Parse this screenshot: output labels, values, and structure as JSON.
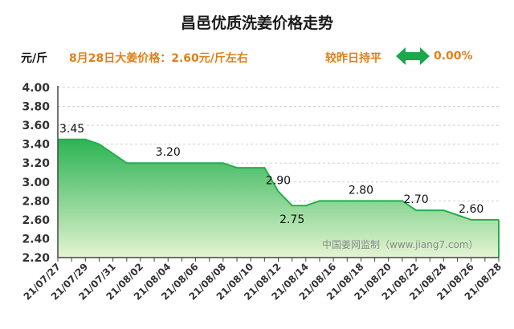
{
  "header": {
    "title": "昌邑优质洗姜价格走势",
    "unit": "元/斤",
    "price_note": "8月28日大姜价格：2.60元/斤左右",
    "compare_label": "较昨日持平",
    "compare_icon": "double-arrow-icon",
    "compare_value": "0.00%"
  },
  "colors": {
    "accent": "#e0801c",
    "line": "#22b04b",
    "fill_top": "#22b04b",
    "fill_bottom": "#e4f4d2",
    "arrow": "#1aa84a"
  },
  "watermark": "中国姜网监制（www.jiang7.com）",
  "chart_data": {
    "type": "area",
    "ylim": [
      2.2,
      4.0
    ],
    "yticks": [
      "2.20",
      "2.40",
      "2.60",
      "2.80",
      "3.00",
      "3.20",
      "3.40",
      "3.60",
      "3.80",
      "4.00"
    ],
    "xticks": [
      "21/07/27",
      "21/07/29",
      "21/07/31",
      "21/08/02",
      "21/08/04",
      "21/08/06",
      "21/08/08",
      "21/08/10",
      "21/08/12",
      "21/08/14",
      "21/08/16",
      "21/08/18",
      "21/08/20",
      "21/08/22",
      "21/08/24",
      "21/08/26",
      "21/08/28"
    ],
    "x": [
      "21/07/27",
      "21/07/28",
      "21/07/29",
      "21/07/30",
      "21/07/31",
      "21/08/01",
      "21/08/02",
      "21/08/03",
      "21/08/04",
      "21/08/05",
      "21/08/06",
      "21/08/07",
      "21/08/08",
      "21/08/09",
      "21/08/10",
      "21/08/11",
      "21/08/12",
      "21/08/13",
      "21/08/14",
      "21/08/15",
      "21/08/16",
      "21/08/17",
      "21/08/18",
      "21/08/19",
      "21/08/20",
      "21/08/21",
      "21/08/22",
      "21/08/23",
      "21/08/24",
      "21/08/25",
      "21/08/26",
      "21/08/27",
      "21/08/28"
    ],
    "values": [
      3.45,
      3.45,
      3.45,
      3.4,
      3.3,
      3.2,
      3.2,
      3.2,
      3.2,
      3.2,
      3.2,
      3.2,
      3.2,
      3.15,
      3.15,
      3.15,
      2.9,
      2.75,
      2.75,
      2.8,
      2.8,
      2.8,
      2.8,
      2.8,
      2.8,
      2.8,
      2.7,
      2.7,
      2.7,
      2.65,
      2.6,
      2.6,
      2.6
    ],
    "labels": [
      {
        "index": 0,
        "text": "3.45"
      },
      {
        "index": 8,
        "text": "3.20"
      },
      {
        "index": 16,
        "text": "2.90"
      },
      {
        "index": 17,
        "text": "2.75"
      },
      {
        "index": 22,
        "text": "2.80"
      },
      {
        "index": 26,
        "text": "2.70"
      },
      {
        "index": 30,
        "text": "2.60"
      }
    ],
    "grid": true
  }
}
